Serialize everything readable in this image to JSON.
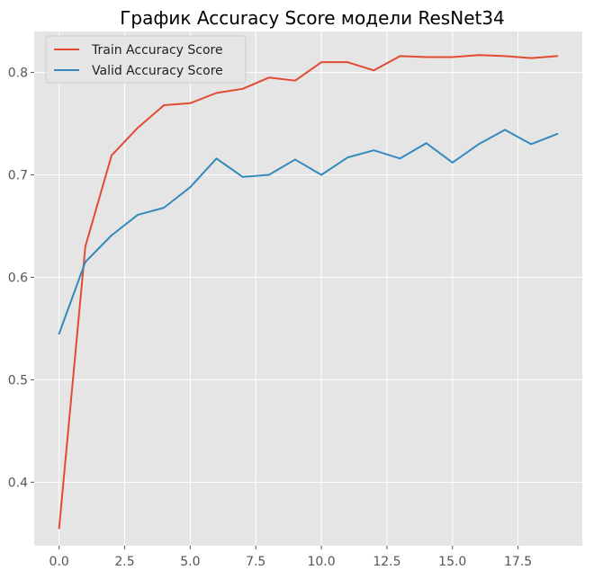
{
  "chart_data": {
    "type": "line",
    "title": "График Accuracy Score модели ResNet34",
    "xlabel": "",
    "ylabel": "",
    "x": [
      0,
      1,
      2,
      3,
      4,
      5,
      6,
      7,
      8,
      9,
      10,
      11,
      12,
      13,
      14,
      15,
      16,
      17,
      18,
      19
    ],
    "xlim": [
      -0.95,
      19.95
    ],
    "ylim": [
      0.338,
      0.84
    ],
    "xticks": [
      0.0,
      2.5,
      5.0,
      7.5,
      10.0,
      12.5,
      15.0,
      17.5
    ],
    "xtick_labels": [
      "0.0",
      "2.5",
      "5.0",
      "7.5",
      "10.0",
      "12.5",
      "15.0",
      "17.5"
    ],
    "yticks": [
      0.4,
      0.5,
      0.6,
      0.7,
      0.8
    ],
    "ytick_labels": [
      "0.4",
      "0.5",
      "0.6",
      "0.7",
      "0.8"
    ],
    "grid": true,
    "legend_position": "top-left",
    "background_color": "#e5e5e5",
    "grid_color": "#ffffff",
    "series": [
      {
        "name": "Train Accuracy Score",
        "color": "#e24a33",
        "values": [
          0.355,
          0.63,
          0.719,
          0.746,
          0.768,
          0.77,
          0.78,
          0.784,
          0.795,
          0.792,
          0.81,
          0.81,
          0.802,
          0.816,
          0.815,
          0.815,
          0.817,
          0.816,
          0.814,
          0.816
        ]
      },
      {
        "name": "Valid Accuracy Score",
        "color": "#348abd",
        "values": [
          0.545,
          0.615,
          0.641,
          0.661,
          0.668,
          0.688,
          0.716,
          0.698,
          0.7,
          0.715,
          0.7,
          0.717,
          0.724,
          0.716,
          0.731,
          0.712,
          0.73,
          0.744,
          0.73,
          0.74
        ]
      }
    ]
  }
}
